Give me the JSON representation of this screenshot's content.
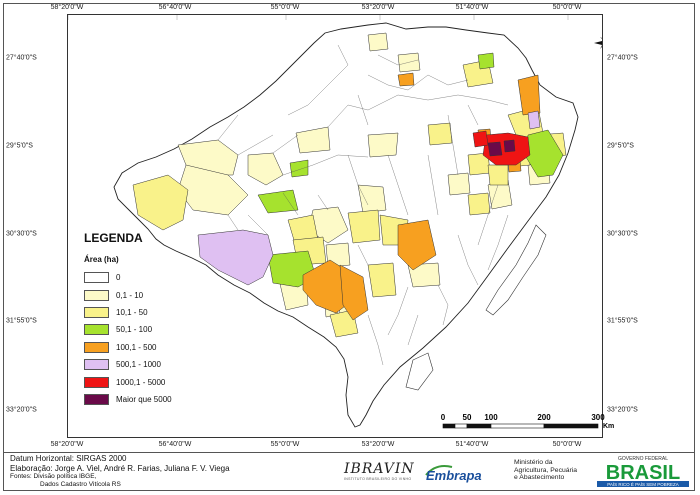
{
  "graticule": {
    "top_lon": [
      "58°20'0\"W",
      "56°40'0\"W",
      "55°0'0\"W",
      "53°20'0\"W",
      "51°40'0\"W",
      "50°0'0\"W"
    ],
    "bottom_lon": [
      "58°20'0\"W",
      "56°40'0\"W",
      "55°0'0\"W",
      "53°20'0\"W",
      "51°40'0\"W",
      "50°0'0\"W"
    ],
    "left_lat": [
      "27°40'0\"S",
      "29°5'0\"S",
      "30°30'0\"S",
      "31°55'0\"S",
      "33°20'0\"S"
    ],
    "right_lat": [
      "27°40'0\"S",
      "29°5'0\"S",
      "30°30'0\"S",
      "31°55'0\"S",
      "33°20'0\"S"
    ]
  },
  "north_label": "N",
  "legend": {
    "title": "LEGENDA",
    "subtitle": "Área (ha)",
    "classes": [
      {
        "label": "0",
        "color": "#ffffff"
      },
      {
        "label": "0,1 - 10",
        "color": "#fdfac8"
      },
      {
        "label": "10,1 - 50",
        "color": "#f9f28a"
      },
      {
        "label": "50,1 - 100",
        "color": "#a6e22e"
      },
      {
        "label": "100,1 - 500",
        "color": "#f7a020"
      },
      {
        "label": "500,1 - 1000",
        "color": "#dfc0f2"
      },
      {
        "label": "1000,1 - 5000",
        "color": "#ef1414"
      },
      {
        "label": "Maior que 5000",
        "color": "#6a0a49"
      }
    ]
  },
  "scale": {
    "ticks": [
      "0",
      "50",
      "100",
      "200",
      "300"
    ],
    "unit": "Km"
  },
  "credits": {
    "datum": "Datum Horizontal: SIRGAS 2000",
    "elaboracao": "Elaboração: Jorge A. Viel, André R. Farias, Juliana F. V. Viega",
    "fontes1": "Fontes: Divisão política IBGE,",
    "fontes2": "Dados Cadastro Vitícola RS"
  },
  "logos": {
    "ibravin": "IBRAVIN",
    "ibravin_sub": "INSTITUTO BRASILEIRO DO VINHO",
    "embrapa": "Embrapa",
    "ministerio": [
      "Ministério da",
      "Agricultura, Pecuária",
      "e Abastecimento"
    ],
    "governo": "GOVERNO FEDERAL",
    "brasil": "BRASIL",
    "slogan": "PAÍS RICO É PAÍS SEM POBREZA"
  }
}
